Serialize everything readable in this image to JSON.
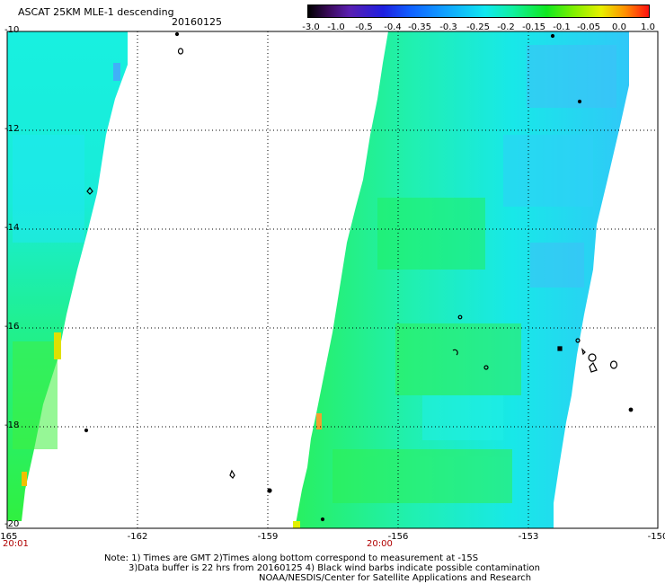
{
  "title": "ASCAT 25KM MLE-1 descending",
  "date": "20160125",
  "colorbar": {
    "labels": [
      "-3.0",
      "-1.0",
      "-0.5",
      "-0.4",
      "-0.35",
      "-0.3",
      "-0.25",
      "-0.2",
      "-0.15",
      "-0.1",
      "-0.05",
      "0.0",
      "1.0"
    ]
  },
  "map": {
    "lat_labels": [
      "-10",
      "-12",
      "-14",
      "-16",
      "-18",
      "-20"
    ],
    "lon_labels": [
      "-165",
      "-162",
      "-159",
      "-156",
      "-153",
      "-150"
    ],
    "time_left": "20:01",
    "time_mid": "20:00",
    "colors": {
      "background": "#ffffff",
      "swath_green": "#20f07c",
      "swath_cyan": "#18f0e0",
      "swath_blue": "#30c8f8",
      "grid": "#000000"
    }
  },
  "notes": {
    "line1": "Note: 1) Times are GMT 2)Times along bottom correspond to measurement at -15S",
    "line2": "3)Data buffer is 22 hrs from 20160125 4) Black wind barbs indicate possible contamination",
    "line3": "NOAA/NESDIS/Center for Satellite Applications and Research"
  }
}
